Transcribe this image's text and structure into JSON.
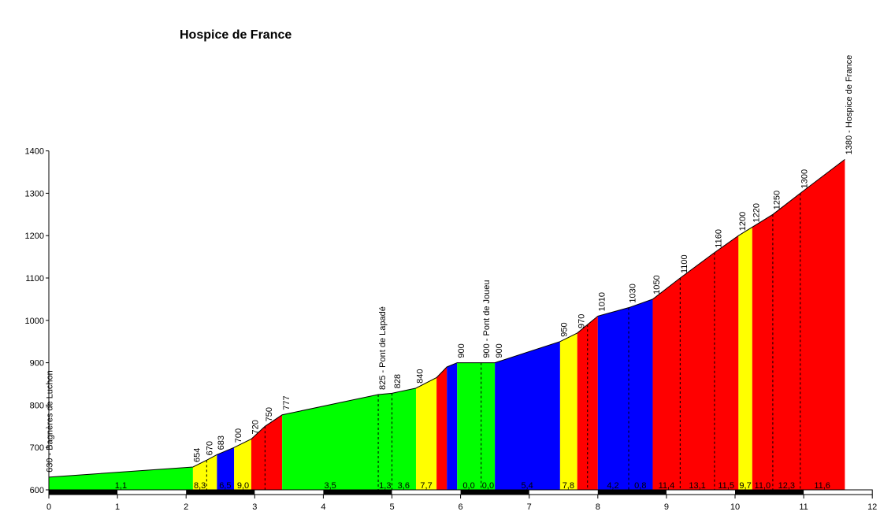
{
  "chart_data": {
    "type": "area",
    "title": "Hospice de France",
    "xlabel": "",
    "ylabel": "",
    "xlim": [
      0,
      12
    ],
    "ylim": [
      600,
      1400
    ],
    "x_ticks": [
      "0",
      "1",
      "2",
      "3",
      "4",
      "5",
      "6",
      "7",
      "8",
      "9",
      "10",
      "11",
      "12"
    ],
    "y_ticks": [
      "600",
      "700",
      "800",
      "900",
      "1000",
      "1100",
      "1200",
      "1300",
      "1400"
    ],
    "colors": {
      "green": "#00ff00",
      "yellow": "#ffff00",
      "blue": "#0000ff",
      "red": "#ff0000"
    },
    "profile": [
      [
        0,
        630
      ],
      [
        2.1,
        654
      ],
      [
        2.3,
        670
      ],
      [
        2.45,
        683
      ],
      [
        2.7,
        700
      ],
      [
        2.95,
        720
      ],
      [
        3.15,
        750
      ],
      [
        3.4,
        777
      ],
      [
        4.8,
        825
      ],
      [
        5.0,
        828
      ],
      [
        5.35,
        840
      ],
      [
        5.65,
        865
      ],
      [
        5.8,
        890
      ],
      [
        5.95,
        900
      ],
      [
        6.3,
        900
      ],
      [
        6.5,
        900
      ],
      [
        7.45,
        950
      ],
      [
        7.7,
        970
      ],
      [
        8.0,
        1010
      ],
      [
        8.45,
        1030
      ],
      [
        8.8,
        1050
      ],
      [
        9.2,
        1100
      ],
      [
        9.7,
        1160
      ],
      [
        10.05,
        1200
      ],
      [
        10.25,
        1220
      ],
      [
        10.55,
        1250
      ],
      [
        10.95,
        1300
      ],
      [
        11.6,
        1380
      ]
    ],
    "segments": [
      {
        "from": 0,
        "to": 2.1,
        "color": "green",
        "grade": "1,1"
      },
      {
        "from": 2.1,
        "to": 2.45,
        "color": "yellow",
        "grade": "8,3"
      },
      {
        "from": 2.45,
        "to": 2.7,
        "color": "blue",
        "grade": "6,5"
      },
      {
        "from": 2.7,
        "to": 2.95,
        "color": "yellow",
        "grade": "9,0"
      },
      {
        "from": 2.95,
        "to": 3.4,
        "color": "red",
        "grade": ""
      },
      {
        "from": 3.4,
        "to": 5.35,
        "color": "green",
        "grade": "3,5"
      },
      {
        "from": 5.35,
        "to": 5.65,
        "color": "yellow",
        "grade": "7,7"
      },
      {
        "from": 5.65,
        "to": 5.8,
        "color": "red",
        "grade": ""
      },
      {
        "from": 5.8,
        "to": 5.95,
        "color": "blue",
        "grade": ""
      },
      {
        "from": 5.95,
        "to": 6.5,
        "color": "green",
        "grade": "0,0"
      },
      {
        "from": 6.5,
        "to": 7.45,
        "color": "blue",
        "grade": "5,4"
      },
      {
        "from": 7.45,
        "to": 7.7,
        "color": "yellow",
        "grade": "7,8"
      },
      {
        "from": 7.7,
        "to": 8.0,
        "color": "red",
        "grade": ""
      },
      {
        "from": 8.0,
        "to": 8.8,
        "color": "blue",
        "grade": "4,2"
      },
      {
        "from": 8.8,
        "to": 10.05,
        "color": "red",
        "grade": "11,4"
      },
      {
        "from": 10.05,
        "to": 10.25,
        "color": "yellow",
        "grade": "9,7"
      },
      {
        "from": 10.25,
        "to": 11.6,
        "color": "red",
        "grade": "11,6"
      }
    ],
    "grade_labels": [
      {
        "x": 1.05,
        "text": "1,1"
      },
      {
        "x": 2.2,
        "text": "8,3"
      },
      {
        "x": 2.57,
        "text": "6,5"
      },
      {
        "x": 2.83,
        "text": "9,0"
      },
      {
        "x": 4.1,
        "text": "3,5"
      },
      {
        "x": 4.9,
        "text": "1,3"
      },
      {
        "x": 5.17,
        "text": "3,6"
      },
      {
        "x": 5.5,
        "text": "7,7"
      },
      {
        "x": 6.12,
        "text": "0,0"
      },
      {
        "x": 6.4,
        "text": "0,0"
      },
      {
        "x": 6.97,
        "text": "5,4"
      },
      {
        "x": 7.57,
        "text": "7,8"
      },
      {
        "x": 8.22,
        "text": "4,2"
      },
      {
        "x": 8.62,
        "text": "0,8"
      },
      {
        "x": 9.0,
        "text": "11,4"
      },
      {
        "x": 9.45,
        "text": "13,1"
      },
      {
        "x": 9.87,
        "text": "11,5"
      },
      {
        "x": 10.15,
        "text": "9,7"
      },
      {
        "x": 10.4,
        "text": "11,0"
      },
      {
        "x": 10.75,
        "text": "12,3"
      },
      {
        "x": 11.27,
        "text": "11,6"
      }
    ],
    "altitude_labels": [
      {
        "x": 0.05,
        "y": 630,
        "text": "630 - Bagnères de Luchon"
      },
      {
        "x": 2.2,
        "y": 654,
        "text": "654"
      },
      {
        "x": 2.38,
        "y": 670,
        "text": "670"
      },
      {
        "x": 2.55,
        "y": 683,
        "text": "683"
      },
      {
        "x": 2.8,
        "y": 700,
        "text": "700"
      },
      {
        "x": 3.05,
        "y": 720,
        "text": "720"
      },
      {
        "x": 3.25,
        "y": 750,
        "text": "750"
      },
      {
        "x": 3.5,
        "y": 777,
        "text": "777"
      },
      {
        "x": 4.9,
        "y": 825,
        "text": "825 - Pont de Lapadé"
      },
      {
        "x": 5.12,
        "y": 828,
        "text": "828"
      },
      {
        "x": 5.45,
        "y": 840,
        "text": "840"
      },
      {
        "x": 6.05,
        "y": 900,
        "text": "900"
      },
      {
        "x": 6.42,
        "y": 900,
        "text": "900 - Pont de Joueu"
      },
      {
        "x": 6.6,
        "y": 900,
        "text": "900"
      },
      {
        "x": 7.55,
        "y": 950,
        "text": "950"
      },
      {
        "x": 7.8,
        "y": 970,
        "text": "970"
      },
      {
        "x": 8.1,
        "y": 1010,
        "text": "1010"
      },
      {
        "x": 8.55,
        "y": 1030,
        "text": "1030"
      },
      {
        "x": 8.9,
        "y": 1050,
        "text": "1050"
      },
      {
        "x": 9.3,
        "y": 1100,
        "text": "1100"
      },
      {
        "x": 9.8,
        "y": 1160,
        "text": "1160"
      },
      {
        "x": 10.15,
        "y": 1200,
        "text": "1200"
      },
      {
        "x": 10.35,
        "y": 1220,
        "text": "1220"
      },
      {
        "x": 10.65,
        "y": 1250,
        "text": "1250"
      },
      {
        "x": 11.05,
        "y": 1300,
        "text": "1300"
      },
      {
        "x": 11.7,
        "y": 1380,
        "text": "1380 - Hospice de France"
      }
    ],
    "dashed_x": [
      2.3,
      3.15,
      4.8,
      5.0,
      6.3,
      7.85,
      8.45,
      9.2,
      9.7,
      10.55,
      10.95
    ],
    "km_bar_black": [
      [
        0,
        1
      ],
      [
        2,
        3
      ],
      [
        4,
        5
      ],
      [
        6,
        7
      ],
      [
        8,
        9
      ],
      [
        10,
        11
      ]
    ]
  }
}
